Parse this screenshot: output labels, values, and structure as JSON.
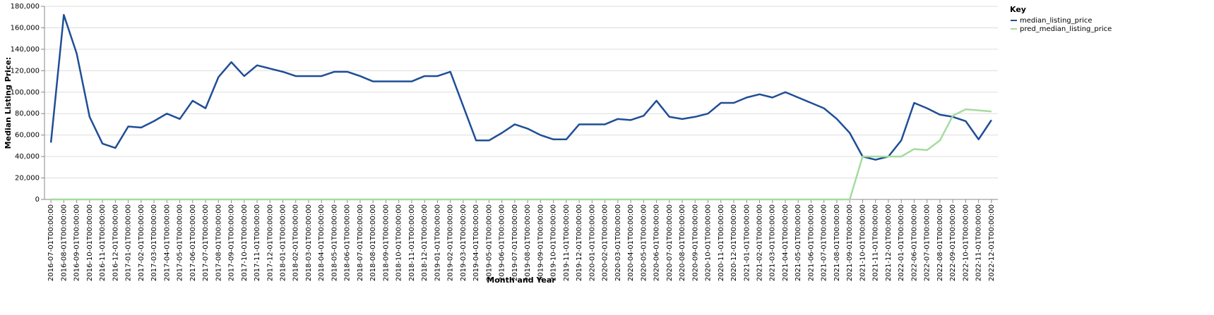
{
  "chart_data": {
    "type": "line",
    "x_label": "Month and Year",
    "y_label": "Median Listing Price:",
    "legend_title": "Key",
    "grid": true,
    "categories": [
      "2016-07-01T00:00:00",
      "2016-08-01T00:00:00",
      "2016-09-01T00:00:00",
      "2016-10-01T00:00:00",
      "2016-11-01T00:00:00",
      "2016-12-01T00:00:00",
      "2017-01-01T00:00:00",
      "2017-02-01T00:00:00",
      "2017-03-01T00:00:00",
      "2017-04-01T00:00:00",
      "2017-05-01T00:00:00",
      "2017-06-01T00:00:00",
      "2017-07-01T00:00:00",
      "2017-08-01T00:00:00",
      "2017-09-01T00:00:00",
      "2017-10-01T00:00:00",
      "2017-11-01T00:00:00",
      "2017-12-01T00:00:00",
      "2018-01-01T00:00:00",
      "2018-02-01T00:00:00",
      "2018-03-01T00:00:00",
      "2018-04-01T00:00:00",
      "2018-05-01T00:00:00",
      "2018-06-01T00:00:00",
      "2018-07-01T00:00:00",
      "2018-08-01T00:00:00",
      "2018-09-01T00:00:00",
      "2018-10-01T00:00:00",
      "2018-11-01T00:00:00",
      "2018-12-01T00:00:00",
      "2019-01-01T00:00:00",
      "2019-02-01T00:00:00",
      "2019-03-01T00:00:00",
      "2019-04-01T00:00:00",
      "2019-05-01T00:00:00",
      "2019-06-01T00:00:00",
      "2019-07-01T00:00:00",
      "2019-08-01T00:00:00",
      "2019-09-01T00:00:00",
      "2019-10-01T00:00:00",
      "2019-11-01T00:00:00",
      "2019-12-01T00:00:00",
      "2020-01-01T00:00:00",
      "2020-02-01T00:00:00",
      "2020-03-01T00:00:00",
      "2020-04-01T00:00:00",
      "2020-05-01T00:00:00",
      "2020-06-01T00:00:00",
      "2020-07-01T00:00:00",
      "2020-08-01T00:00:00",
      "2020-09-01T00:00:00",
      "2020-10-01T00:00:00",
      "2020-11-01T00:00:00",
      "2020-12-01T00:00:00",
      "2021-01-01T00:00:00",
      "2021-02-01T00:00:00",
      "2021-03-01T00:00:00",
      "2021-04-01T00:00:00",
      "2021-05-01T00:00:00",
      "2021-06-01T00:00:00",
      "2021-07-01T00:00:00",
      "2021-08-01T00:00:00",
      "2021-09-01T00:00:00",
      "2021-10-01T00:00:00",
      "2021-11-01T00:00:00",
      "2021-12-01T00:00:00",
      "2022-01-01T00:00:00",
      "2022-06-01T00:00:00",
      "2022-07-01T00:00:00",
      "2022-08-01T00:00:00",
      "2022-09-01T00:00:00",
      "2022-10-01T00:00:00",
      "2022-11-01T00:00:00",
      "2022-12-01T00:00:00"
    ],
    "series": [
      {
        "name": "median_listing_price",
        "color": "#1f4e96",
        "values": [
          53000,
          172000,
          136000,
          77000,
          52000,
          48000,
          68000,
          67000,
          73000,
          80000,
          75000,
          92000,
          85000,
          114000,
          128000,
          115000,
          125000,
          122000,
          119000,
          115000,
          115000,
          115000,
          119000,
          119000,
          115000,
          110000,
          110000,
          110000,
          110000,
          115000,
          115000,
          119000,
          87000,
          55000,
          55000,
          62000,
          70000,
          66000,
          60000,
          56000,
          56000,
          70000,
          70000,
          70000,
          75000,
          74000,
          78000,
          92000,
          77000,
          75000,
          77000,
          80000,
          90000,
          90000,
          95000,
          98000,
          95000,
          100000,
          95000,
          90000,
          85000,
          75000,
          62000,
          40000,
          37000,
          40000,
          55000,
          90000,
          85000,
          79000,
          77000,
          73000,
          56000,
          74000
        ]
      },
      {
        "name": "pred_median_listing_price",
        "color": "#a4dc9e",
        "values": [
          0,
          0,
          0,
          0,
          0,
          0,
          0,
          0,
          0,
          0,
          0,
          0,
          0,
          0,
          0,
          0,
          0,
          0,
          0,
          0,
          0,
          0,
          0,
          0,
          0,
          0,
          0,
          0,
          0,
          0,
          0,
          0,
          0,
          0,
          0,
          0,
          0,
          0,
          0,
          0,
          0,
          0,
          0,
          0,
          0,
          0,
          0,
          0,
          0,
          0,
          0,
          0,
          0,
          0,
          0,
          0,
          0,
          0,
          0,
          0,
          0,
          0,
          0,
          40000,
          40000,
          40000,
          40000,
          47000,
          46000,
          55000,
          78000,
          84000,
          83000,
          82000
        ]
      }
    ],
    "ylim": [
      0,
      180000
    ],
    "yticks": [
      0,
      {
        "value": 20000,
        "label": "20,000"
      },
      {
        "value": 40000,
        "label": "40,000"
      },
      {
        "value": 60000,
        "label": "60,000"
      },
      {
        "value": 80000,
        "label": "80,000"
      },
      {
        "value": 100000,
        "label": "100,000"
      },
      {
        "value": 120000,
        "label": "120,000"
      },
      {
        "value": 140000,
        "label": "140,000"
      },
      {
        "value": 160000,
        "label": "160,000"
      },
      {
        "value": 180000,
        "label": "180,000"
      }
    ]
  }
}
